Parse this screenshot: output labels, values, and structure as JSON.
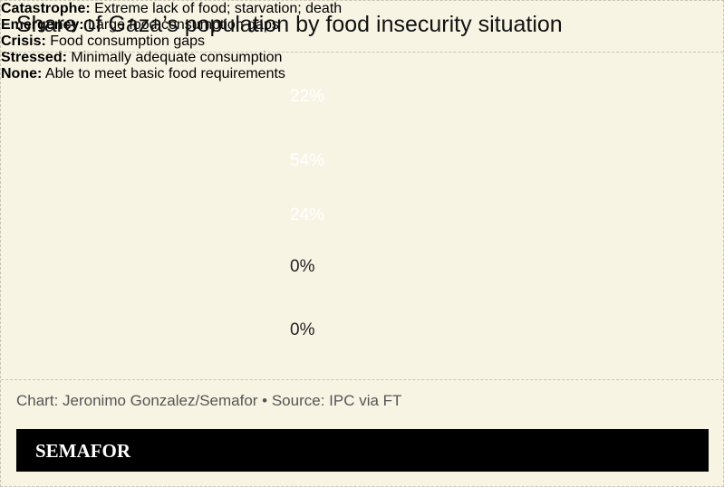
{
  "chart_data": {
    "type": "bar",
    "title": "Share of Gaza’s population by food insecurity situation",
    "categories": [
      "Catastrophe:",
      "Emergency:",
      "Crisis:",
      "Stressed:",
      "None:"
    ],
    "category_descriptions": [
      "Extreme lack of food; starvation; death",
      "Large food consumption gaps",
      "Food consumption gaps",
      "Minimally adequate consumption",
      "Able to meet basic food requirements"
    ],
    "values": [
      22,
      54,
      24,
      0,
      0
    ],
    "value_labels": [
      "22%",
      "54%",
      "24%",
      "0%",
      "0%"
    ],
    "colors": [
      "#5e2626",
      "#c0372a",
      "#dd6410",
      "#dd6410",
      "#dd6410"
    ],
    "source": "Chart: Jeronimo Gonzalez/Semafor • Source: IPC via FT",
    "brand": "SEMAFOR"
  }
}
